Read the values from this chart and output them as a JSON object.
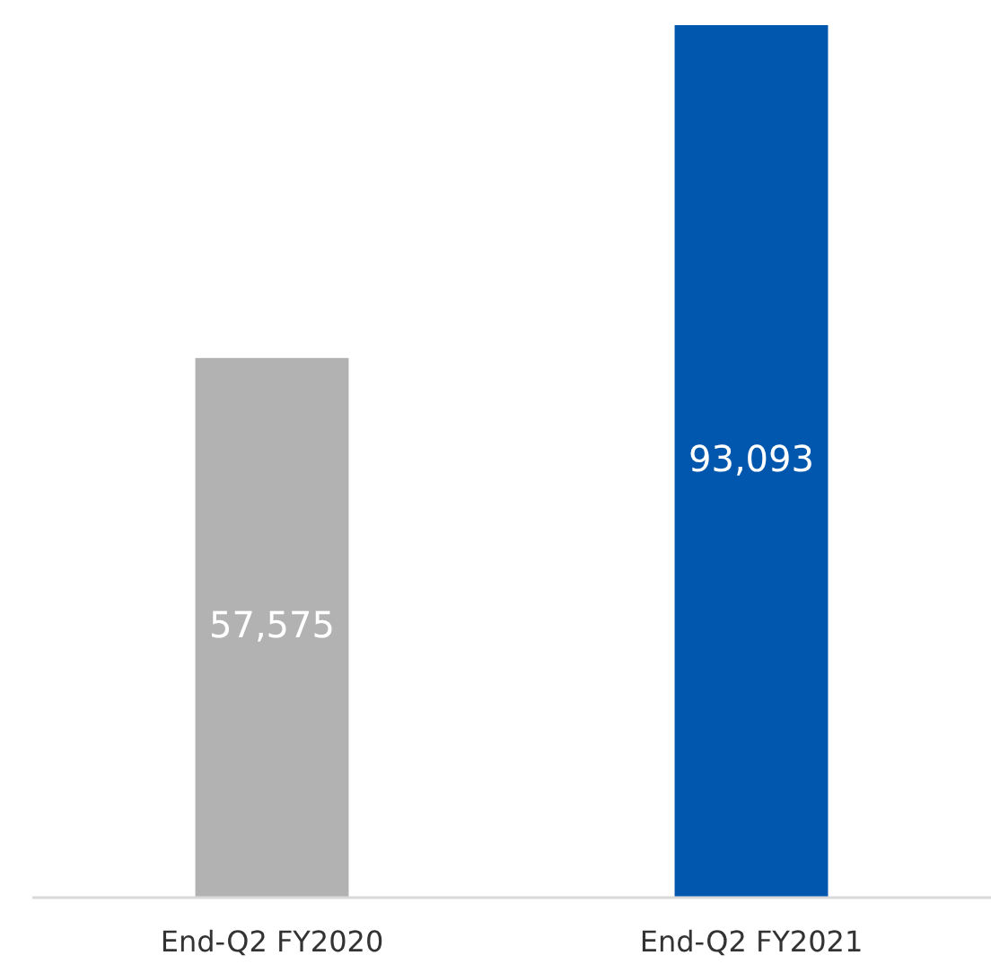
{
  "chart_data": {
    "type": "bar",
    "categories": [
      "End-Q2 FY2020",
      "End-Q2 FY2021"
    ],
    "values": [
      57575,
      93093
    ],
    "colors": [
      "#b2b2b2",
      "#0057ad"
    ],
    "data_labels": true,
    "value_labels": [
      "57,575",
      "93,093"
    ]
  }
}
